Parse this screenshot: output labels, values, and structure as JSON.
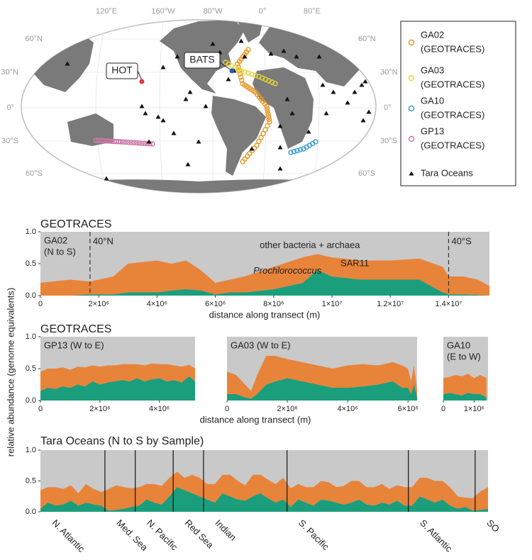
{
  "figure": {
    "ylabel": "relative abundance (genome equivalents)"
  },
  "map": {
    "lon_labels": [
      "120°E",
      "160°W",
      "80°W",
      "0°",
      "80°E"
    ],
    "lat_labels": [
      "60°N",
      "30°N",
      "0°",
      "30°S",
      "60°S"
    ],
    "callouts": [
      "HOT",
      "BATS"
    ],
    "legend": [
      {
        "name": "GA02",
        "source": "(GEOTRACES)",
        "color": "#e69a2a",
        "marker": "circle"
      },
      {
        "name": "GA03",
        "source": "(GEOTRACES)",
        "color": "#e8d630",
        "marker": "circle"
      },
      {
        "name": "GA10",
        "source": "(GEOTRACES)",
        "color": "#3b9bd6",
        "marker": "circle"
      },
      {
        "name": "GP13",
        "source": "(GEOTRACES)",
        "color": "#cc79a7",
        "marker": "circle"
      },
      {
        "name": "Tara Oceans",
        "color": "#111111",
        "marker": "triangle"
      }
    ]
  },
  "chart_data": [
    {
      "type": "area",
      "title": "GEOTRACES",
      "label": [
        "GA02",
        "(N to S)"
      ],
      "xlabel": "distance along transect (m)",
      "x": [
        0,
        1000000,
        1700000,
        2500000,
        3000000,
        4000000,
        4500000,
        5000000,
        5500000,
        6000000,
        6500000,
        7000000,
        8000000,
        9000000,
        9500000,
        10000000,
        11000000,
        12000000,
        13000000,
        13800000,
        14000000,
        14500000,
        15000000,
        15400000
      ],
      "series": [
        {
          "name": "Prochlorococcus",
          "color": "#1a9e7c",
          "values": [
            0,
            0,
            0.02,
            0.02,
            0.05,
            0.05,
            0.08,
            0.1,
            0.08,
            0.02,
            0.05,
            0.05,
            0.1,
            0.2,
            0.4,
            0.3,
            0.25,
            0.25,
            0.25,
            0.05,
            0.02,
            0.02,
            0.01,
            0
          ]
        },
        {
          "name": "SAR11",
          "color": "#e8833a",
          "values": [
            0.2,
            0.25,
            0.2,
            0.28,
            0.45,
            0.5,
            0.42,
            0.45,
            0.32,
            0.18,
            0.2,
            0.25,
            0.35,
            0.4,
            0.25,
            0.3,
            0.3,
            0.3,
            0.33,
            0.4,
            0.28,
            0.28,
            0.24,
            0.15
          ]
        },
        {
          "name": "other bacteria + archaea",
          "color": "#c9c9c9"
        }
      ],
      "annotations": [
        {
          "text": "40°N",
          "x": 1700000
        },
        {
          "text": "40°S",
          "x": 14000000
        }
      ],
      "xlim": [
        0,
        15400000
      ],
      "ylim": [
        0,
        1
      ],
      "xticks": [
        0,
        {
          "value": 2000000,
          "label": "2×10⁶"
        },
        {
          "value": 4000000,
          "label": "4×10⁶"
        },
        {
          "value": 6000000,
          "label": "6×10⁶"
        },
        {
          "value": 8000000,
          "label": "8×10⁶"
        },
        {
          "value": 10000000,
          "label": "1×10⁷"
        },
        {
          "value": 12000000,
          "label": "1.2×10⁷"
        },
        {
          "value": 14000000,
          "label": "1.4×10⁷"
        }
      ],
      "yticks": [
        {
          "value": 0,
          "label": "0.0"
        },
        0.5,
        {
          "value": 1,
          "label": "1.0"
        }
      ]
    },
    {
      "type": "area",
      "title": "GEOTRACES",
      "label": [
        "GP13 (W to E)"
      ],
      "x": [
        0,
        250000,
        500000,
        750000,
        1000000,
        1250000,
        1500000,
        1750000,
        2000000,
        2250000,
        2500000,
        2750000,
        3000000,
        3250000,
        3500000,
        3750000,
        4000000,
        4250000,
        4500000,
        4750000,
        5000000,
        5200000
      ],
      "series": [
        {
          "color": "#1a9e7c",
          "values": [
            0.15,
            0.2,
            0.18,
            0.22,
            0.2,
            0.25,
            0.22,
            0.3,
            0.25,
            0.28,
            0.3,
            0.32,
            0.3,
            0.35,
            0.3,
            0.33,
            0.35,
            0.3,
            0.32,
            0.28,
            0.38,
            0.3
          ]
        },
        {
          "color": "#e8833a",
          "values": [
            0.3,
            0.3,
            0.32,
            0.3,
            0.28,
            0.28,
            0.3,
            0.25,
            0.28,
            0.27,
            0.25,
            0.25,
            0.27,
            0.22,
            0.25,
            0.25,
            0.22,
            0.27,
            0.23,
            0.25,
            0.18,
            0.2
          ]
        }
      ],
      "xlim": [
        0,
        5200000
      ],
      "ylim": [
        0,
        1
      ],
      "xticks": [
        0,
        {
          "value": 2000000,
          "label": "2×10⁶"
        },
        {
          "value": 4000000,
          "label": "4×10⁶"
        }
      ],
      "yticks": [
        {
          "value": 0,
          "label": "0.0"
        },
        0.5,
        {
          "value": 1,
          "label": "1.0"
        }
      ]
    },
    {
      "type": "area",
      "label": [
        "GA03 (W to E)"
      ],
      "xlabel": "distance along transect (m)",
      "x": [
        0,
        300000,
        600000,
        800000,
        1000000,
        1300000,
        1600000,
        2000000,
        2500000,
        3000000,
        3500000,
        4000000,
        4500000,
        5000000,
        5500000,
        5800000,
        6000000,
        6100000,
        6200000,
        6300000
      ],
      "series": [
        {
          "color": "#1a9e7c",
          "values": [
            0.1,
            0.1,
            0.05,
            0.03,
            0.1,
            0.25,
            0.3,
            0.35,
            0.3,
            0.25,
            0.2,
            0.2,
            0.22,
            0.25,
            0.3,
            0.2,
            0.2,
            0.1,
            0.25,
            0.05
          ]
        },
        {
          "color": "#e8833a",
          "values": [
            0.35,
            0.3,
            0.2,
            0.12,
            0.3,
            0.45,
            0.4,
            0.3,
            0.3,
            0.3,
            0.3,
            0.35,
            0.35,
            0.3,
            0.3,
            0.35,
            0.3,
            0.2,
            0.3,
            0.1
          ]
        }
      ],
      "xlim": [
        0,
        6300000
      ],
      "ylim": [
        0,
        1
      ],
      "xticks": [
        0,
        {
          "value": 2000000,
          "label": "2×10⁶"
        },
        {
          "value": 4000000,
          "label": "4×10⁶"
        },
        {
          "value": 6000000,
          "label": "6×10⁶"
        }
      ]
    },
    {
      "type": "area",
      "label": [
        "GA10",
        "(E to W)"
      ],
      "x": [
        0,
        200000,
        400000,
        600000,
        800000,
        1000000,
        1200000,
        1400000
      ],
      "series": [
        {
          "color": "#1a9e7c",
          "values": [
            0.1,
            0.12,
            0.1,
            0.08,
            0.12,
            0.1,
            0.1,
            0.05
          ]
        },
        {
          "color": "#e8833a",
          "values": [
            0.25,
            0.25,
            0.3,
            0.3,
            0.3,
            0.25,
            0.3,
            0.3
          ]
        }
      ],
      "xlim": [
        0,
        1450000
      ],
      "ylim": [
        0,
        1
      ],
      "xticks": [
        0,
        {
          "value": 1000000,
          "label": "1×10⁶"
        }
      ]
    },
    {
      "type": "area",
      "title": "Tara Oceans (N to S by Sample)",
      "series": [
        {
          "color": "#1a9e7c",
          "values": [
            0.05,
            0.15,
            0.1,
            0.12,
            0.18,
            0.1,
            0.15,
            0.12,
            0.1,
            0.02,
            0.03,
            0.05,
            0.08,
            0.1,
            0.2,
            0.15,
            0.12,
            0.25,
            0.4,
            0.35,
            0.3,
            0.25,
            0.2,
            0.15,
            0.3,
            0.25,
            0.2,
            0.18,
            0.25,
            0.3,
            0.22,
            0.15,
            0.2,
            0.08,
            0.2,
            0.15,
            0.1,
            0.2,
            0.18,
            0.15,
            0.12,
            0.15,
            0.2,
            0.12,
            0.1,
            0.15,
            0.12,
            0.18,
            0.1,
            0.1,
            0.25,
            0.2,
            0.15,
            0.2,
            0.1,
            0.05,
            0.08,
            0.02,
            0.03,
            0.05
          ]
        },
        {
          "color": "#e8833a",
          "values": [
            0.3,
            0.25,
            0.3,
            0.25,
            0.25,
            0.2,
            0.3,
            0.25,
            0.22,
            0.35,
            0.4,
            0.35,
            0.3,
            0.3,
            0.25,
            0.3,
            0.3,
            0.3,
            0.25,
            0.2,
            0.3,
            0.3,
            0.25,
            0.3,
            0.3,
            0.35,
            0.3,
            0.25,
            0.35,
            0.3,
            0.3,
            0.3,
            0.35,
            0.3,
            0.25,
            0.25,
            0.3,
            0.3,
            0.3,
            0.25,
            0.3,
            0.35,
            0.3,
            0.28,
            0.3,
            0.3,
            0.25,
            0.25,
            0.3,
            0.3,
            0.3,
            0.35,
            0.35,
            0.3,
            0.3,
            0.2,
            0.15,
            0.2,
            0.3,
            0.35
          ]
        }
      ],
      "regions": [
        "N. Atlantic",
        "Med. Sea",
        "N. Pacific",
        "Red Sea",
        "Indian",
        "S. Pacific",
        "S. Atlantic",
        "SO"
      ],
      "boundaries": [
        8.5,
        12.5,
        17.5,
        21.5,
        32.5,
        48.5,
        57.3
      ],
      "xlim": [
        0,
        59
      ],
      "ylim": [
        0,
        1
      ],
      "yticks": [
        {
          "value": 0,
          "label": "0.0"
        },
        0.5,
        {
          "value": 1,
          "label": "1.0"
        }
      ]
    }
  ]
}
